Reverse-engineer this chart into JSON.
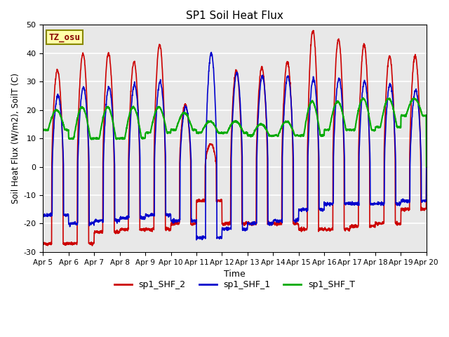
{
  "title": "SP1 Soil Heat Flux",
  "xlabel": "Time",
  "ylabel": "Soil Heat Flux (W/m2), SoilT (C)",
  "ylim": [
    -30,
    50
  ],
  "xlim_days": [
    0,
    15
  ],
  "background_color": "#e8e8e8",
  "grid_color": "#cccccc",
  "series": {
    "sp1_SHF_2": {
      "color": "#cc0000",
      "lw": 1.2
    },
    "sp1_SHF_1": {
      "color": "#0000cc",
      "lw": 1.2
    },
    "sp1_SHF_T": {
      "color": "#00aa00",
      "lw": 1.5
    }
  },
  "xtick_labels": [
    "Apr 5",
    "Apr 6",
    "Apr 7",
    "Apr 8",
    "Apr 9",
    "Apr 10",
    "Apr 11",
    "Apr 12",
    "Apr 13",
    "Apr 14",
    "Apr 15",
    "Apr 16",
    "Apr 17",
    "Apr 18",
    "Apr 19",
    "Apr 20"
  ],
  "xtick_positions": [
    0,
    1,
    2,
    3,
    4,
    5,
    6,
    7,
    8,
    9,
    10,
    11,
    12,
    13,
    14,
    15
  ],
  "ytick_values": [
    -30,
    -20,
    -10,
    0,
    10,
    20,
    30,
    40,
    50
  ],
  "annotation_text": "TZ_osu",
  "annotation_color": "#880000",
  "annotation_bg": "#ffffaa",
  "annotation_border": "#888800",
  "legend_entries": [
    "sp1_SHF_2",
    "sp1_SHF_1",
    "sp1_SHF_T"
  ],
  "legend_colors": [
    "#cc0000",
    "#0000cc",
    "#00aa00"
  ],
  "shf2_day_amps": [
    34,
    40,
    40,
    37,
    43,
    22,
    8,
    34,
    35,
    37,
    48,
    45,
    43,
    39,
    39
  ],
  "shf2_night_vals": [
    -27,
    -27,
    -23,
    -22,
    -22,
    -20,
    -12,
    -20,
    -20,
    -20,
    -22,
    -22,
    -21,
    -20,
    -15
  ],
  "shf1_day_amps": [
    25,
    28,
    28,
    29,
    30,
    21,
    40,
    33,
    32,
    32,
    31,
    31,
    30,
    29,
    27
  ],
  "shf1_night_vals": [
    -17,
    -20,
    -19,
    -18,
    -17,
    -19,
    -25,
    -22,
    -20,
    -19,
    -15,
    -13,
    -13,
    -13,
    -12
  ],
  "shft_peaks": [
    20,
    21,
    21,
    21,
    21,
    19,
    16,
    16,
    15,
    16,
    23,
    23,
    24,
    24,
    24
  ],
  "shft_bases": [
    13,
    10,
    10,
    10,
    12,
    13,
    12,
    12,
    11,
    11,
    11,
    13,
    13,
    14,
    18
  ]
}
